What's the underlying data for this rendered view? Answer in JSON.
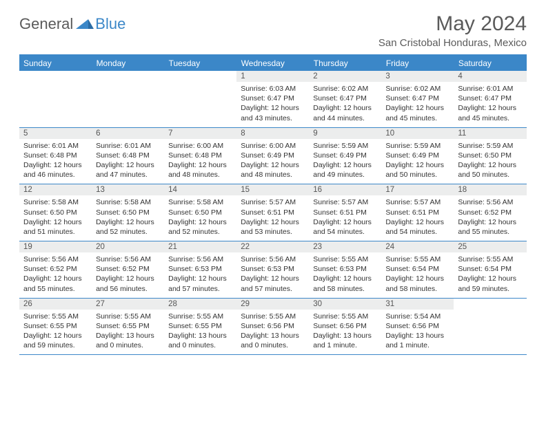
{
  "logo": {
    "general": "General",
    "blue": "Blue"
  },
  "title": "May 2024",
  "location": "San Cristobal Honduras, Mexico",
  "colors": {
    "accent": "#3b87c8",
    "daynum_bg": "#eceded",
    "text": "#333333",
    "header_text": "#5a5a5a"
  },
  "day_headers": [
    "Sunday",
    "Monday",
    "Tuesday",
    "Wednesday",
    "Thursday",
    "Friday",
    "Saturday"
  ],
  "weeks": [
    [
      null,
      null,
      null,
      {
        "n": "1",
        "sr": "Sunrise: 6:03 AM",
        "ss": "Sunset: 6:47 PM",
        "d1": "Daylight: 12 hours",
        "d2": "and 43 minutes."
      },
      {
        "n": "2",
        "sr": "Sunrise: 6:02 AM",
        "ss": "Sunset: 6:47 PM",
        "d1": "Daylight: 12 hours",
        "d2": "and 44 minutes."
      },
      {
        "n": "3",
        "sr": "Sunrise: 6:02 AM",
        "ss": "Sunset: 6:47 PM",
        "d1": "Daylight: 12 hours",
        "d2": "and 45 minutes."
      },
      {
        "n": "4",
        "sr": "Sunrise: 6:01 AM",
        "ss": "Sunset: 6:47 PM",
        "d1": "Daylight: 12 hours",
        "d2": "and 45 minutes."
      }
    ],
    [
      {
        "n": "5",
        "sr": "Sunrise: 6:01 AM",
        "ss": "Sunset: 6:48 PM",
        "d1": "Daylight: 12 hours",
        "d2": "and 46 minutes."
      },
      {
        "n": "6",
        "sr": "Sunrise: 6:01 AM",
        "ss": "Sunset: 6:48 PM",
        "d1": "Daylight: 12 hours",
        "d2": "and 47 minutes."
      },
      {
        "n": "7",
        "sr": "Sunrise: 6:00 AM",
        "ss": "Sunset: 6:48 PM",
        "d1": "Daylight: 12 hours",
        "d2": "and 48 minutes."
      },
      {
        "n": "8",
        "sr": "Sunrise: 6:00 AM",
        "ss": "Sunset: 6:49 PM",
        "d1": "Daylight: 12 hours",
        "d2": "and 48 minutes."
      },
      {
        "n": "9",
        "sr": "Sunrise: 5:59 AM",
        "ss": "Sunset: 6:49 PM",
        "d1": "Daylight: 12 hours",
        "d2": "and 49 minutes."
      },
      {
        "n": "10",
        "sr": "Sunrise: 5:59 AM",
        "ss": "Sunset: 6:49 PM",
        "d1": "Daylight: 12 hours",
        "d2": "and 50 minutes."
      },
      {
        "n": "11",
        "sr": "Sunrise: 5:59 AM",
        "ss": "Sunset: 6:50 PM",
        "d1": "Daylight: 12 hours",
        "d2": "and 50 minutes."
      }
    ],
    [
      {
        "n": "12",
        "sr": "Sunrise: 5:58 AM",
        "ss": "Sunset: 6:50 PM",
        "d1": "Daylight: 12 hours",
        "d2": "and 51 minutes."
      },
      {
        "n": "13",
        "sr": "Sunrise: 5:58 AM",
        "ss": "Sunset: 6:50 PM",
        "d1": "Daylight: 12 hours",
        "d2": "and 52 minutes."
      },
      {
        "n": "14",
        "sr": "Sunrise: 5:58 AM",
        "ss": "Sunset: 6:50 PM",
        "d1": "Daylight: 12 hours",
        "d2": "and 52 minutes."
      },
      {
        "n": "15",
        "sr": "Sunrise: 5:57 AM",
        "ss": "Sunset: 6:51 PM",
        "d1": "Daylight: 12 hours",
        "d2": "and 53 minutes."
      },
      {
        "n": "16",
        "sr": "Sunrise: 5:57 AM",
        "ss": "Sunset: 6:51 PM",
        "d1": "Daylight: 12 hours",
        "d2": "and 54 minutes."
      },
      {
        "n": "17",
        "sr": "Sunrise: 5:57 AM",
        "ss": "Sunset: 6:51 PM",
        "d1": "Daylight: 12 hours",
        "d2": "and 54 minutes."
      },
      {
        "n": "18",
        "sr": "Sunrise: 5:56 AM",
        "ss": "Sunset: 6:52 PM",
        "d1": "Daylight: 12 hours",
        "d2": "and 55 minutes."
      }
    ],
    [
      {
        "n": "19",
        "sr": "Sunrise: 5:56 AM",
        "ss": "Sunset: 6:52 PM",
        "d1": "Daylight: 12 hours",
        "d2": "and 55 minutes."
      },
      {
        "n": "20",
        "sr": "Sunrise: 5:56 AM",
        "ss": "Sunset: 6:52 PM",
        "d1": "Daylight: 12 hours",
        "d2": "and 56 minutes."
      },
      {
        "n": "21",
        "sr": "Sunrise: 5:56 AM",
        "ss": "Sunset: 6:53 PM",
        "d1": "Daylight: 12 hours",
        "d2": "and 57 minutes."
      },
      {
        "n": "22",
        "sr": "Sunrise: 5:56 AM",
        "ss": "Sunset: 6:53 PM",
        "d1": "Daylight: 12 hours",
        "d2": "and 57 minutes."
      },
      {
        "n": "23",
        "sr": "Sunrise: 5:55 AM",
        "ss": "Sunset: 6:53 PM",
        "d1": "Daylight: 12 hours",
        "d2": "and 58 minutes."
      },
      {
        "n": "24",
        "sr": "Sunrise: 5:55 AM",
        "ss": "Sunset: 6:54 PM",
        "d1": "Daylight: 12 hours",
        "d2": "and 58 minutes."
      },
      {
        "n": "25",
        "sr": "Sunrise: 5:55 AM",
        "ss": "Sunset: 6:54 PM",
        "d1": "Daylight: 12 hours",
        "d2": "and 59 minutes."
      }
    ],
    [
      {
        "n": "26",
        "sr": "Sunrise: 5:55 AM",
        "ss": "Sunset: 6:55 PM",
        "d1": "Daylight: 12 hours",
        "d2": "and 59 minutes."
      },
      {
        "n": "27",
        "sr": "Sunrise: 5:55 AM",
        "ss": "Sunset: 6:55 PM",
        "d1": "Daylight: 13 hours",
        "d2": "and 0 minutes."
      },
      {
        "n": "28",
        "sr": "Sunrise: 5:55 AM",
        "ss": "Sunset: 6:55 PM",
        "d1": "Daylight: 13 hours",
        "d2": "and 0 minutes."
      },
      {
        "n": "29",
        "sr": "Sunrise: 5:55 AM",
        "ss": "Sunset: 6:56 PM",
        "d1": "Daylight: 13 hours",
        "d2": "and 0 minutes."
      },
      {
        "n": "30",
        "sr": "Sunrise: 5:55 AM",
        "ss": "Sunset: 6:56 PM",
        "d1": "Daylight: 13 hours",
        "d2": "and 1 minute."
      },
      {
        "n": "31",
        "sr": "Sunrise: 5:54 AM",
        "ss": "Sunset: 6:56 PM",
        "d1": "Daylight: 13 hours",
        "d2": "and 1 minute."
      },
      null
    ]
  ]
}
